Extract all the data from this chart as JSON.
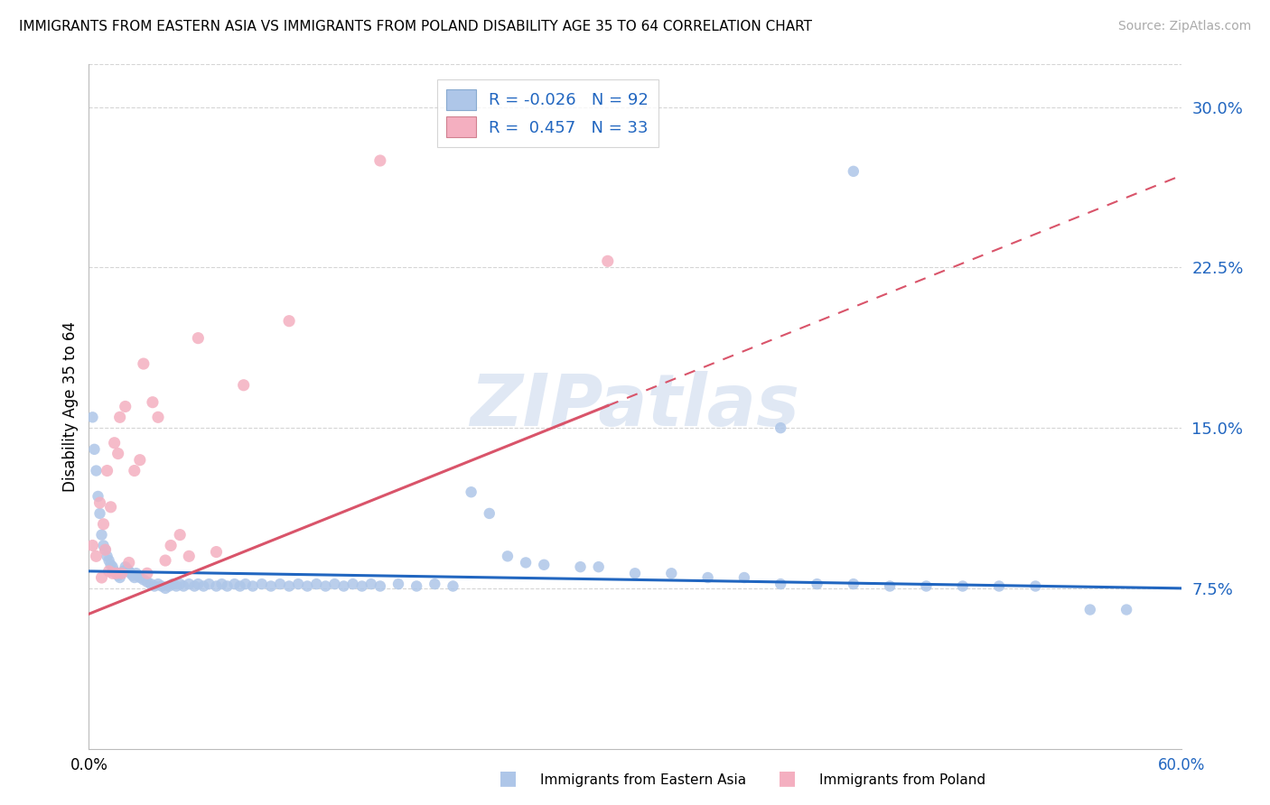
{
  "title": "IMMIGRANTS FROM EASTERN ASIA VS IMMIGRANTS FROM POLAND DISABILITY AGE 35 TO 64 CORRELATION CHART",
  "source": "Source: ZipAtlas.com",
  "ylabel": "Disability Age 35 to 64",
  "legend_label1": "Immigrants from Eastern Asia",
  "legend_label2": "Immigrants from Poland",
  "R1": -0.026,
  "N1": 92,
  "R2": 0.457,
  "N2": 33,
  "color1": "#aec6e8",
  "color2": "#f4afc0",
  "trendline1_color": "#2166c0",
  "trendline2_color": "#d9546a",
  "watermark_color": "#ccdaee",
  "xlim": [
    0.0,
    0.6
  ],
  "ylim": [
    0.0,
    0.32
  ],
  "yticks": [
    0.075,
    0.15,
    0.225,
    0.3
  ],
  "yticklabels": [
    "7.5%",
    "15.0%",
    "22.5%",
    "30.0%"
  ],
  "scatter1_x": [
    0.002,
    0.003,
    0.004,
    0.005,
    0.006,
    0.007,
    0.008,
    0.009,
    0.01,
    0.011,
    0.012,
    0.013,
    0.014,
    0.015,
    0.016,
    0.017,
    0.018,
    0.019,
    0.02,
    0.021,
    0.022,
    0.023,
    0.024,
    0.025,
    0.026,
    0.027,
    0.028,
    0.03,
    0.032,
    0.034,
    0.036,
    0.038,
    0.04,
    0.042,
    0.044,
    0.046,
    0.048,
    0.05,
    0.052,
    0.055,
    0.058,
    0.06,
    0.063,
    0.066,
    0.07,
    0.073,
    0.076,
    0.08,
    0.083,
    0.086,
    0.09,
    0.095,
    0.1,
    0.105,
    0.11,
    0.115,
    0.12,
    0.125,
    0.13,
    0.135,
    0.14,
    0.145,
    0.15,
    0.155,
    0.16,
    0.17,
    0.18,
    0.19,
    0.2,
    0.21,
    0.22,
    0.23,
    0.24,
    0.25,
    0.27,
    0.28,
    0.3,
    0.32,
    0.34,
    0.36,
    0.38,
    0.4,
    0.42,
    0.44,
    0.46,
    0.48,
    0.5,
    0.52,
    0.55,
    0.57,
    0.38,
    0.42
  ],
  "scatter1_y": [
    0.155,
    0.14,
    0.13,
    0.118,
    0.11,
    0.1,
    0.095,
    0.093,
    0.09,
    0.088,
    0.086,
    0.085,
    0.083,
    0.082,
    0.081,
    0.08,
    0.082,
    0.083,
    0.085,
    0.084,
    0.083,
    0.082,
    0.081,
    0.08,
    0.082,
    0.081,
    0.08,
    0.079,
    0.078,
    0.077,
    0.076,
    0.077,
    0.076,
    0.075,
    0.076,
    0.077,
    0.076,
    0.077,
    0.076,
    0.077,
    0.076,
    0.077,
    0.076,
    0.077,
    0.076,
    0.077,
    0.076,
    0.077,
    0.076,
    0.077,
    0.076,
    0.077,
    0.076,
    0.077,
    0.076,
    0.077,
    0.076,
    0.077,
    0.076,
    0.077,
    0.076,
    0.077,
    0.076,
    0.077,
    0.076,
    0.077,
    0.076,
    0.077,
    0.076,
    0.12,
    0.11,
    0.09,
    0.087,
    0.086,
    0.085,
    0.085,
    0.082,
    0.082,
    0.08,
    0.08,
    0.077,
    0.077,
    0.077,
    0.076,
    0.076,
    0.076,
    0.076,
    0.076,
    0.065,
    0.065,
    0.15,
    0.27
  ],
  "scatter2_x": [
    0.002,
    0.004,
    0.006,
    0.007,
    0.008,
    0.009,
    0.01,
    0.011,
    0.012,
    0.013,
    0.014,
    0.015,
    0.016,
    0.017,
    0.018,
    0.02,
    0.022,
    0.025,
    0.028,
    0.03,
    0.032,
    0.035,
    0.038,
    0.042,
    0.045,
    0.05,
    0.055,
    0.06,
    0.07,
    0.085,
    0.11,
    0.16,
    0.285
  ],
  "scatter2_y": [
    0.095,
    0.09,
    0.115,
    0.08,
    0.105,
    0.093,
    0.13,
    0.083,
    0.113,
    0.082,
    0.143,
    0.082,
    0.138,
    0.155,
    0.082,
    0.16,
    0.087,
    0.13,
    0.135,
    0.18,
    0.082,
    0.162,
    0.155,
    0.088,
    0.095,
    0.1,
    0.09,
    0.192,
    0.092,
    0.17,
    0.2,
    0.275,
    0.228
  ],
  "trend1_x0": 0.0,
  "trend1_y0": 0.083,
  "trend1_x1": 0.6,
  "trend1_y1": 0.075,
  "trend2_x0": 0.0,
  "trend2_y0": 0.063,
  "trend2_x1": 0.6,
  "trend2_y1": 0.268,
  "trend2_solid_end": 0.285
}
